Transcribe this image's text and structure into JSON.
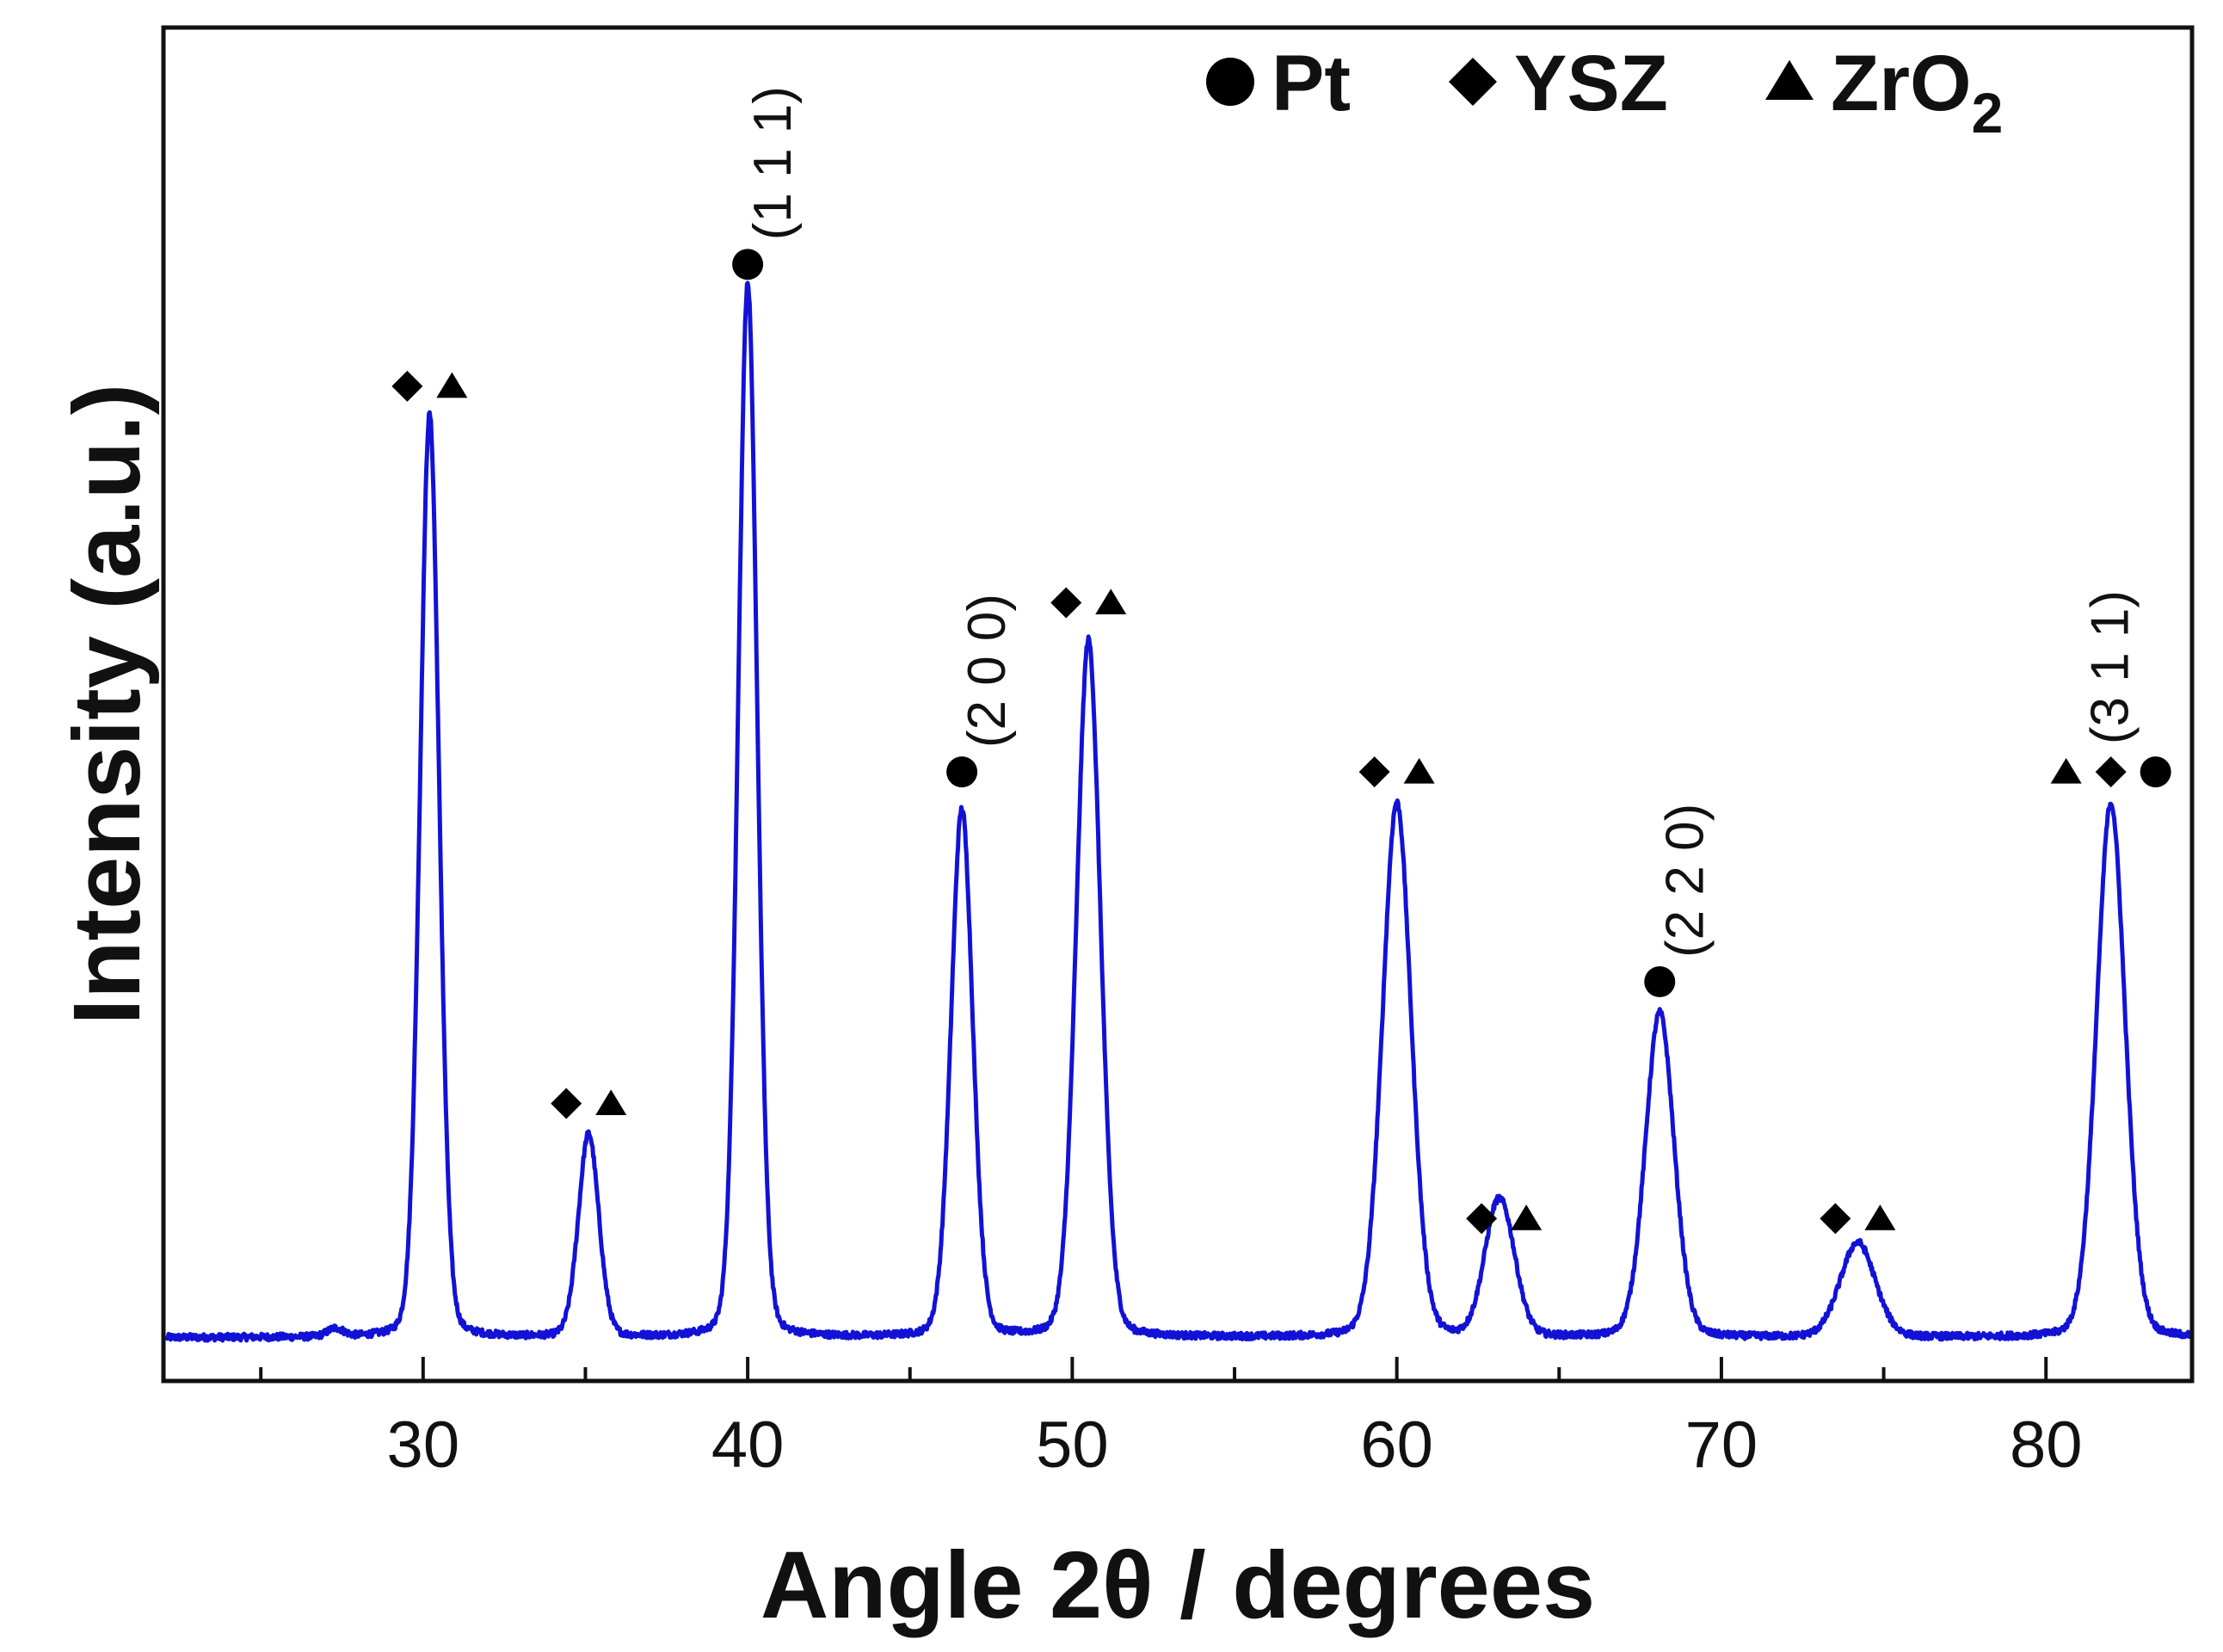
{
  "chart_data": {
    "type": "line",
    "title": "",
    "xlabel": "Angle 2θ / degrees",
    "ylabel": "Intensity (a.u.)",
    "xlim": [
      22,
      84.5
    ],
    "ylim": [
      0,
      100
    ],
    "x_ticks": [
      30,
      40,
      50,
      60,
      70,
      80
    ],
    "x_minor_ticks": [
      25,
      35,
      45,
      55,
      65,
      75
    ],
    "y_ticks": [],
    "grid": false,
    "baseline": 3.2,
    "series": [
      {
        "color": "#1212d6",
        "peaks": [
          {
            "x": 27.3,
            "height": 0.6,
            "width": 0.25
          },
          {
            "x": 30.2,
            "height": 68.2,
            "width": 0.3
          },
          {
            "x": 35.1,
            "height": 15.0,
            "width": 0.32
          },
          {
            "x": 40.0,
            "height": 77.8,
            "width": 0.3
          },
          {
            "x": 46.6,
            "height": 39.0,
            "width": 0.34
          },
          {
            "x": 50.5,
            "height": 51.5,
            "width": 0.38
          },
          {
            "x": 60.0,
            "height": 39.5,
            "width": 0.45
          },
          {
            "x": 63.0,
            "height": 6.6,
            "width": 0.4
          },
          {
            "x": 63.4,
            "height": 5.0,
            "width": 0.4
          },
          {
            "x": 68.1,
            "height": 24.0,
            "width": 0.45
          },
          {
            "x": 74.2,
            "height": 7.0,
            "width": 0.55
          },
          {
            "x": 82.0,
            "height": 39.5,
            "width": 0.45
          }
        ]
      }
    ],
    "legend": {
      "placement": "top-right",
      "entries": [
        {
          "marker": "circle",
          "label": "Pt"
        },
        {
          "marker": "diamond",
          "label": "YSZ"
        },
        {
          "marker": "triangle",
          "label": "ZrO",
          "subscript": "2"
        }
      ]
    },
    "annotations": [
      {
        "x": 30.2,
        "y": 73.5,
        "markers": [
          "diamond",
          "triangle"
        ]
      },
      {
        "x": 35.1,
        "y": 20.5,
        "markers": [
          "diamond",
          "triangle"
        ]
      },
      {
        "x": 40.0,
        "y": 82.5,
        "markers": [
          "circle"
        ],
        "hkl": "(1 1 1)"
      },
      {
        "x": 46.6,
        "y": 45.0,
        "markers": [
          "circle"
        ],
        "hkl": "(2 0 0)"
      },
      {
        "x": 50.5,
        "y": 57.5,
        "markers": [
          "diamond",
          "triangle"
        ]
      },
      {
        "x": 60.0,
        "y": 45.0,
        "markers": [
          "diamond",
          "triangle"
        ]
      },
      {
        "x": 63.3,
        "y": 12.0,
        "markers": [
          "diamond",
          "triangle"
        ]
      },
      {
        "x": 68.1,
        "y": 29.5,
        "markers": [
          "circle"
        ],
        "hkl": "(2 2 0)"
      },
      {
        "x": 74.2,
        "y": 12.0,
        "markers": [
          "diamond",
          "triangle"
        ]
      },
      {
        "x": 82.0,
        "y": 45.0,
        "markers": [
          "triangle",
          "diamond",
          "circle"
        ],
        "hkl": "(3 1 1)"
      }
    ]
  }
}
